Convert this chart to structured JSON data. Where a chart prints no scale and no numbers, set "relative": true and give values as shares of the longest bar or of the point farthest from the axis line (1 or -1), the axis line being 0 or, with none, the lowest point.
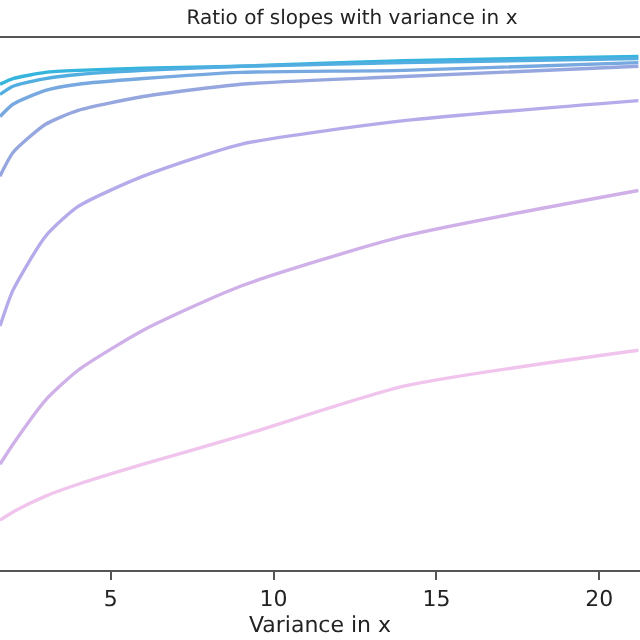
{
  "chart_data": {
    "type": "line",
    "title": "Ratio of slopes with variance in x",
    "xlabel": "Variance in x",
    "relative": true,
    "x": [
      1.6,
      2,
      3,
      4,
      6,
      9,
      14,
      21.2
    ],
    "xlim": [
      1.6,
      21.25
    ],
    "xticks": [
      5,
      10,
      15,
      20
    ],
    "tick_labels": "x",
    "marker": "none",
    "line_style": "solid",
    "series": [
      {
        "color": "#35b4dd",
        "values": [
          0.946,
          0.957,
          0.969,
          0.973,
          0.977,
          0.981,
          0.992,
          1.0
        ]
      },
      {
        "color": "#52aee0",
        "values": [
          0.926,
          0.942,
          0.957,
          0.965,
          0.973,
          0.981,
          0.988,
          0.996
        ]
      },
      {
        "color": "#78a8e0",
        "values": [
          0.883,
          0.907,
          0.934,
          0.946,
          0.957,
          0.969,
          0.973,
          0.988
        ]
      },
      {
        "color": "#96a6de",
        "values": [
          0.767,
          0.813,
          0.868,
          0.895,
          0.922,
          0.946,
          0.961,
          0.981
        ]
      },
      {
        "color": "#b4acea",
        "values": [
          0.475,
          0.545,
          0.65,
          0.708,
          0.767,
          0.829,
          0.875,
          0.914
        ]
      },
      {
        "color": "#d0b0e8",
        "values": [
          0.206,
          0.245,
          0.331,
          0.389,
          0.467,
          0.553,
          0.65,
          0.739
        ]
      },
      {
        "color": "#f0c4ec",
        "values": [
          0.097,
          0.113,
          0.144,
          0.167,
          0.206,
          0.261,
          0.358,
          0.428
        ]
      }
    ]
  }
}
